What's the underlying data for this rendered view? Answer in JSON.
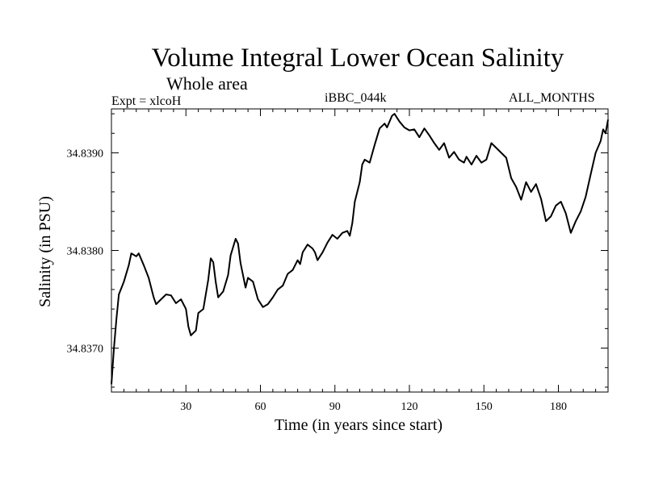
{
  "chart_data": {
    "type": "line",
    "title": "Volume Integral Lower Ocean Salinity",
    "subtitle": "Whole area",
    "top_left_label": "Expt = xlcoH",
    "top_center_label": "iBBC_044k",
    "top_right_label": "ALL_MONTHS",
    "xlabel": "Time (in years since start)",
    "ylabel": "Salinity (in PSU)",
    "xlim": [
      0,
      200
    ],
    "ylim": [
      34.83655,
      34.83945
    ],
    "x_ticks": [
      30,
      60,
      90,
      120,
      150,
      180
    ],
    "y_ticks": [
      34.837,
      34.838,
      34.839
    ],
    "y_tick_labels": [
      "34.8370",
      "34.8380",
      "34.8390"
    ],
    "grid": false,
    "series": [
      {
        "name": "Salinity",
        "points": [
          [
            0,
            34.83663
          ],
          [
            1,
            34.837
          ],
          [
            2,
            34.8373
          ],
          [
            3,
            34.83755
          ],
          [
            5,
            34.83768
          ],
          [
            7,
            34.83785
          ],
          [
            8,
            34.83797
          ],
          [
            10,
            34.83794
          ],
          [
            11,
            34.83797
          ],
          [
            13,
            34.83785
          ],
          [
            15,
            34.83772
          ],
          [
            17,
            34.83752
          ],
          [
            18,
            34.83745
          ],
          [
            20,
            34.8375
          ],
          [
            22,
            34.83755
          ],
          [
            24,
            34.83754
          ],
          [
            26,
            34.83746
          ],
          [
            28,
            34.8375
          ],
          [
            30,
            34.8374
          ],
          [
            31,
            34.83722
          ],
          [
            32,
            34.83713
          ],
          [
            34,
            34.83718
          ],
          [
            35,
            34.83736
          ],
          [
            37,
            34.8374
          ],
          [
            39,
            34.8377
          ],
          [
            40,
            34.83792
          ],
          [
            41,
            34.83788
          ],
          [
            42,
            34.83768
          ],
          [
            43,
            34.83752
          ],
          [
            45,
            34.83758
          ],
          [
            47,
            34.83775
          ],
          [
            48,
            34.83795
          ],
          [
            50,
            34.83812
          ],
          [
            51,
            34.83807
          ],
          [
            52,
            34.83787
          ],
          [
            54,
            34.83762
          ],
          [
            55,
            34.83772
          ],
          [
            57,
            34.83768
          ],
          [
            59,
            34.8375
          ],
          [
            61,
            34.83742
          ],
          [
            63,
            34.83745
          ],
          [
            65,
            34.83752
          ],
          [
            67,
            34.8376
          ],
          [
            69,
            34.83764
          ],
          [
            71,
            34.83776
          ],
          [
            73,
            34.8378
          ],
          [
            75,
            34.8379
          ],
          [
            76,
            34.83786
          ],
          [
            77,
            34.83798
          ],
          [
            79,
            34.83806
          ],
          [
            81,
            34.83802
          ],
          [
            82,
            34.83798
          ],
          [
            83,
            34.8379
          ],
          [
            85,
            34.83798
          ],
          [
            87,
            34.83808
          ],
          [
            89,
            34.83816
          ],
          [
            91,
            34.83812
          ],
          [
            93,
            34.83818
          ],
          [
            95,
            34.8382
          ],
          [
            96,
            34.83815
          ],
          [
            97,
            34.83828
          ],
          [
            98,
            34.8385
          ],
          [
            100,
            34.8387
          ],
          [
            101,
            34.83888
          ],
          [
            102,
            34.83893
          ],
          [
            104,
            34.8389
          ],
          [
            106,
            34.83908
          ],
          [
            108,
            34.83925
          ],
          [
            110,
            34.8393
          ],
          [
            111,
            34.83926
          ],
          [
            113,
            34.83938
          ],
          [
            114,
            34.8394
          ],
          [
            116,
            34.83932
          ],
          [
            118,
            34.83926
          ],
          [
            120,
            34.83923
          ],
          [
            122,
            34.83924
          ],
          [
            124,
            34.83916
          ],
          [
            126,
            34.83925
          ],
          [
            128,
            34.83918
          ],
          [
            130,
            34.8391
          ],
          [
            132,
            34.83903
          ],
          [
            134,
            34.8391
          ],
          [
            136,
            34.83895
          ],
          [
            138,
            34.83901
          ],
          [
            140,
            34.83893
          ],
          [
            142,
            34.8389
          ],
          [
            143,
            34.83896
          ],
          [
            145,
            34.83888
          ],
          [
            147,
            34.83897
          ],
          [
            149,
            34.8389
          ],
          [
            151,
            34.83893
          ],
          [
            153,
            34.8391
          ],
          [
            155,
            34.83905
          ],
          [
            157,
            34.839
          ],
          [
            159,
            34.83895
          ],
          [
            161,
            34.83874
          ],
          [
            163,
            34.83865
          ],
          [
            165,
            34.83852
          ],
          [
            167,
            34.8387
          ],
          [
            169,
            34.8386
          ],
          [
            171,
            34.83868
          ],
          [
            173,
            34.83853
          ],
          [
            175,
            34.8383
          ],
          [
            177,
            34.83835
          ],
          [
            179,
            34.83846
          ],
          [
            181,
            34.8385
          ],
          [
            183,
            34.83838
          ],
          [
            185,
            34.83818
          ],
          [
            187,
            34.8383
          ],
          [
            189,
            34.8384
          ],
          [
            191,
            34.83855
          ],
          [
            193,
            34.83878
          ],
          [
            195,
            34.839
          ],
          [
            197,
            34.83912
          ],
          [
            198,
            34.83924
          ],
          [
            199,
            34.8392
          ],
          [
            200,
            34.83934
          ]
        ]
      }
    ]
  }
}
